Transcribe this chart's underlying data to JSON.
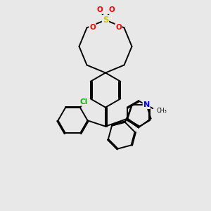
{
  "bg_color": "#e8e8e8",
  "atom_colors": {
    "S": "#cccc00",
    "O": "#ff0000",
    "N": "#0000ff",
    "Cl": "#00bb00",
    "C": "#000000"
  },
  "line_color": "#000000",
  "line_width": 1.4,
  "xlim": [
    0,
    10
  ],
  "ylim": [
    0,
    10
  ]
}
